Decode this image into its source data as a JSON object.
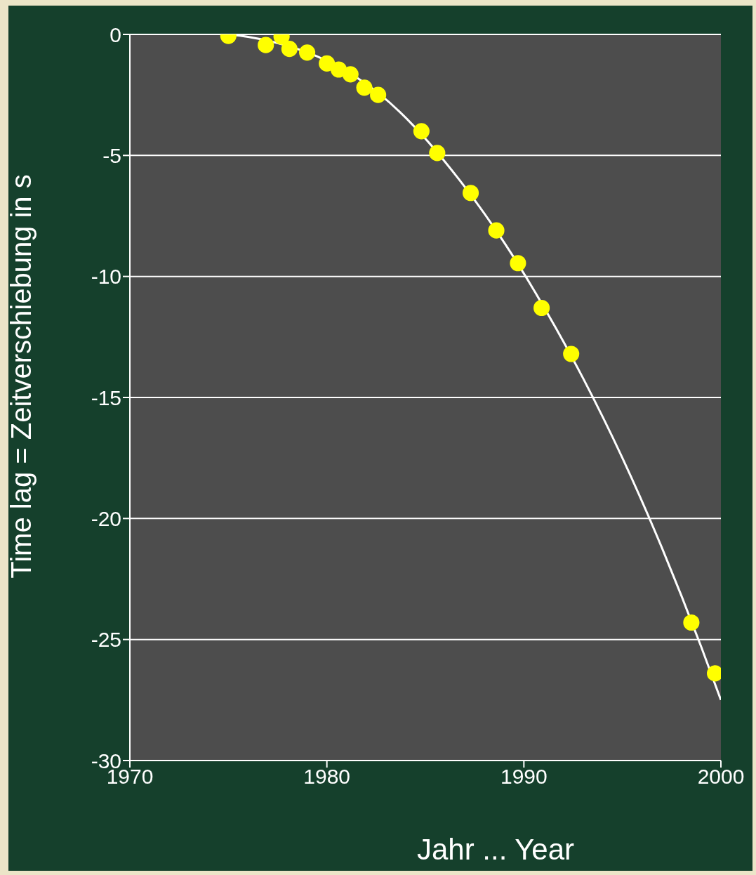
{
  "chart_data": {
    "type": "scatter",
    "xlabel": "Jahr  ... Year",
    "ylabel": "Time lag  =  Zeitverschiebung in s",
    "xlim": [
      1970,
      2000
    ],
    "xticks": [
      1970,
      1980,
      1990,
      2000
    ],
    "ylim": [
      -30,
      0
    ],
    "yticks": [
      -30,
      -25,
      -20,
      -15,
      -10,
      -5,
      0
    ],
    "grid": "y",
    "legend": false,
    "series": [
      {
        "marker": "circle",
        "color": "#ffff00",
        "x": [
          1975.0,
          1976.9,
          1977.7,
          1978.1,
          1979.0,
          1980.0,
          1980.6,
          1981.2,
          1981.9,
          1982.6,
          1984.8,
          1985.6,
          1987.3,
          1988.6,
          1989.7,
          1990.9,
          1992.4,
          1998.5,
          1999.7
        ],
        "values": [
          -0.06,
          -0.44,
          -0.09,
          -0.6,
          -0.75,
          -1.2,
          -1.45,
          -1.65,
          -2.2,
          -2.5,
          -4.0,
          -4.9,
          -6.55,
          -8.1,
          -9.45,
          -11.3,
          -13.2,
          -24.3,
          -26.4
        ]
      },
      {
        "type": "line",
        "color": "#ffffff",
        "x": [
          1975,
          1976,
          1983.7,
          1987,
          1989,
          1991.6,
          1993,
          1995,
          1997,
          1998,
          1999,
          2000
        ],
        "values": [
          0,
          -0.1,
          -3.2,
          -6.3,
          -8.6,
          -12.1,
          -14.2,
          -17.5,
          -21.2,
          -23.2,
          -25.3,
          -27.5
        ]
      }
    ]
  }
}
